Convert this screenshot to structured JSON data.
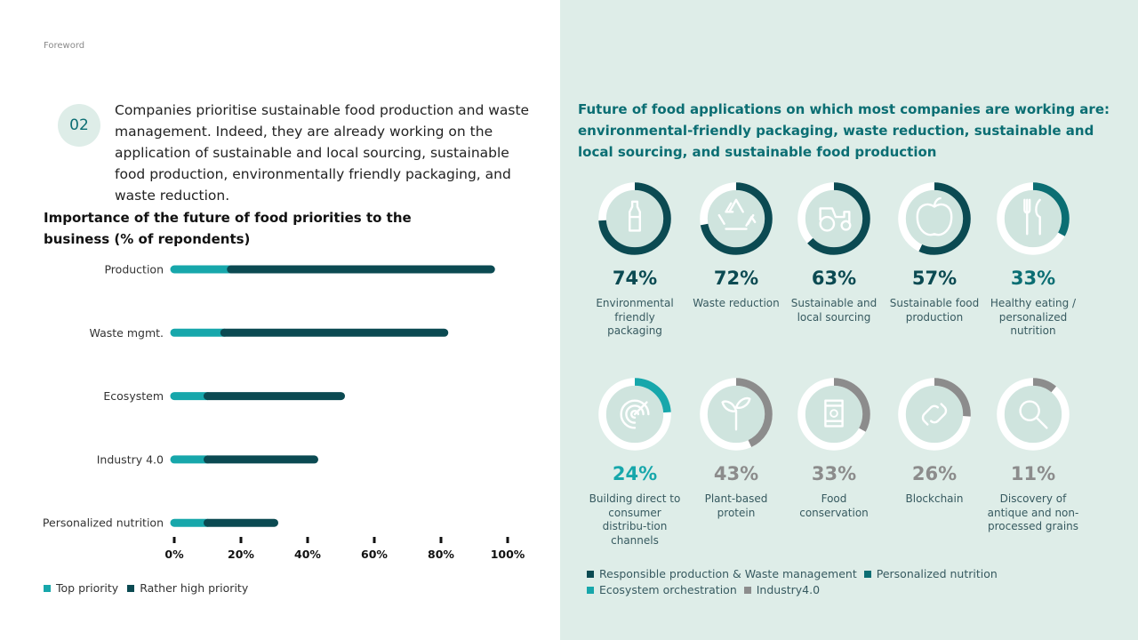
{
  "header": {
    "section": "Foreword"
  },
  "intro": {
    "number": "02",
    "text": "Companies prioritise sustainable food production and waste management. Indeed, they are already working on the application of sustainable and local sourcing, sustainable food production, environmentally friendly packaging, and waste reduction."
  },
  "colors": {
    "top": "#17a7ab",
    "high": "#0b4a52",
    "accent": "#0b6e73",
    "grey": "#8c8c8c",
    "panel": "#deede8",
    "tile": "#cfe4de"
  },
  "chart_data": [
    {
      "type": "bar",
      "orientation": "horizontal",
      "stacked": true,
      "title": "Importance of the future of food priorities to the business (% of repondents)",
      "categories": [
        "Production",
        "Waste mgmt.",
        "Ecosystem",
        "Industry 4.0",
        "Personalized nutrition"
      ],
      "series": [
        {
          "name": "Top priority",
          "values": [
            17,
            15,
            10,
            10,
            10
          ]
        },
        {
          "name": "Rather high priority",
          "values": [
            78,
            66,
            40,
            32,
            20
          ]
        }
      ],
      "xlim": [
        0,
        100
      ],
      "x_ticks": [
        "0%",
        "20%",
        "40%",
        "60%",
        "80%",
        "100%"
      ],
      "legend": "bottom-left"
    },
    {
      "type": "pie",
      "title": "Future of food applications on which most companies are working are: environmental-friendly packaging, waste reduction, sustainable and local sourcing, and sustainable food production",
      "items": [
        {
          "label": "Environmental friendly packaging",
          "value": 74,
          "display": "74%",
          "group": "Responsible production & Waste management",
          "icon": "bottle-icon"
        },
        {
          "label": "Waste reduction",
          "value": 72,
          "display": "72%",
          "group": "Responsible production & Waste management",
          "icon": "recycle-icon"
        },
        {
          "label": "Sustainable and local sourcing",
          "value": 63,
          "display": "63%",
          "group": "Responsible production & Waste management",
          "icon": "tractor-icon"
        },
        {
          "label": "Sustainable food production",
          "value": 57,
          "display": "57%",
          "group": "Responsible production & Waste management",
          "icon": "apple-icon"
        },
        {
          "label": "Healthy eating / personalized nutrition",
          "value": 33,
          "display": "33%",
          "group": "Personalized nutrition",
          "icon": "cutlery-icon"
        },
        {
          "label": "Building direct to consumer distribu-tion channels",
          "value": 24,
          "display": "24%",
          "group": "Ecosystem orchestration",
          "icon": "target-icon"
        },
        {
          "label": "Plant-based protein",
          "value": 43,
          "display": "43%",
          "group": "Industry4.0",
          "icon": "sprout-icon"
        },
        {
          "label": "Food conservation",
          "value": 33,
          "display": "33%",
          "group": "Industry4.0",
          "icon": "can-icon"
        },
        {
          "label": "Blockchain",
          "value": 26,
          "display": "26%",
          "group": "Industry4.0",
          "icon": "chain-link-icon"
        },
        {
          "label": "Discovery of antique and non-processed grains",
          "value": 11,
          "display": "11%",
          "group": "Industry4.0",
          "icon": "magnifier-icon"
        }
      ],
      "legend": [
        {
          "name": "Responsible production & Waste management",
          "color": "#0b4a52"
        },
        {
          "name": "Personalized nutrition",
          "color": "#0b6e73"
        },
        {
          "name": "Ecosystem orchestration",
          "color": "#17a7ab"
        },
        {
          "name": "Industry4.0",
          "color": "#8c8c8c"
        }
      ]
    }
  ]
}
